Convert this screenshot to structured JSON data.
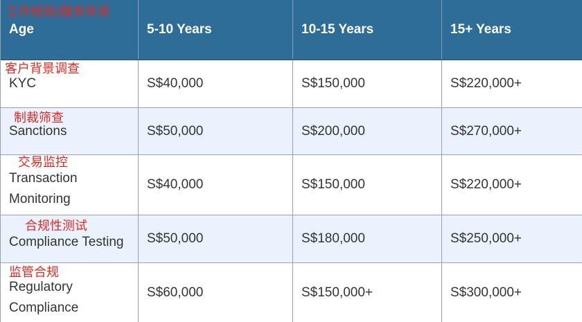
{
  "header": {
    "annotation": "工作经验/服务年资",
    "col1": "Age",
    "col2": "5-10 Years",
    "col3": "10-15 Years",
    "col4": "15+ Years"
  },
  "rows": [
    {
      "annotation": "客户背景调查",
      "role_line1": "KYC",
      "role_line2": "",
      "v1": "S$40,000",
      "v2": "S$150,000",
      "v3": "S$220,000+"
    },
    {
      "annotation": "制裁筛查",
      "role_line1": "Sanctions",
      "role_line2": "",
      "v1": "S$50,000",
      "v2": "S$200,000",
      "v3": "S$270,000+"
    },
    {
      "annotation": "交易监控",
      "role_line1": "Transaction",
      "role_line2": "Monitoring",
      "v1": "S$40,000",
      "v2": "S$150,000",
      "v3": "S$220,000+"
    },
    {
      "annotation": "合规性测试",
      "role_line1": "Compliance Testing",
      "role_line2": "",
      "v1": "S$50,000",
      "v2": "S$180,000",
      "v3": "S$250,000+"
    },
    {
      "annotation": "监管合规",
      "role_line1": "Regulatory",
      "role_line2": "Compliance",
      "v1": "S$60,000",
      "v2": "S$150,000+",
      "v3": "S$300,000+"
    }
  ],
  "colors": {
    "header_bg": "#2e6d97",
    "alt_row_bg": "#eaf3fd",
    "annotation_red": "#e8281e"
  }
}
